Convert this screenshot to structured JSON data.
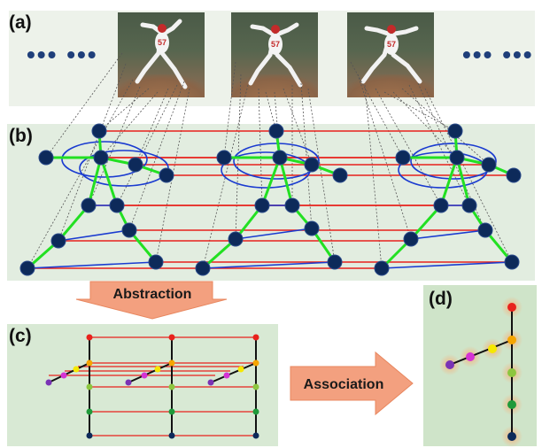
{
  "panels": {
    "a_label": "(a)",
    "b_label": "(b)",
    "c_label": "(c)",
    "d_label": "(d)"
  },
  "ellipsis_left": "••• •••",
  "ellipsis_right": "••• •••",
  "arrows": {
    "abstraction": "Abstraction",
    "association": "Association"
  },
  "jersey_number": "57",
  "colors": {
    "node": "#0d2a5a",
    "limb_edge": "#22e022",
    "temporal_edge": "#e8221c",
    "blue_edge": "#1a3bd0",
    "arrow_fill": "#f3a07f",
    "joint_colors": [
      "#e8221c",
      "#f5a500",
      "#f5e800",
      "#d433d4",
      "#7a33b5",
      "#8cc63f",
      "#1f9a3a",
      "#0d2a5a"
    ]
  }
}
